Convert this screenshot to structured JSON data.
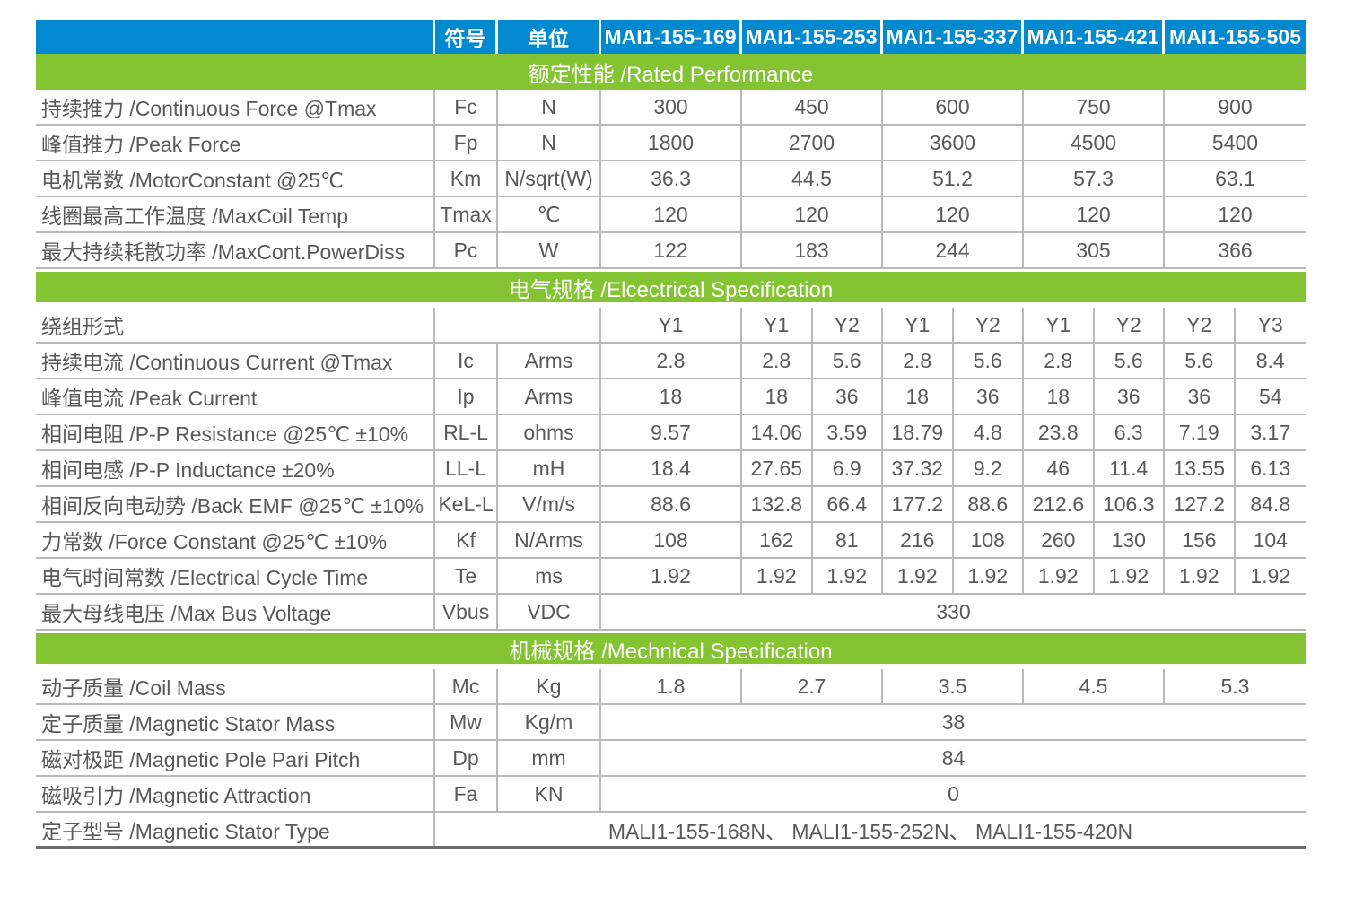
{
  "colors": {
    "header_blue": "#0289d0",
    "section_green": "#84c332",
    "border": "#b7b9bb",
    "text": "#58595b",
    "bottom_border": "#6b6c6e"
  },
  "table": {
    "header": {
      "param": "",
      "symbol": "符号",
      "unit": "单位",
      "models": [
        "MAI1-155-169",
        "MAI1-155-253",
        "MAI1-155-337",
        "MAI1-155-421",
        "MAI1-155-505"
      ]
    },
    "sections": [
      {
        "title": "额定性能 /Rated Performance",
        "rows": [
          {
            "param": "持续推力 /Continuous Force @Tmax",
            "cells": [
              {
                "t": "Fc",
                "s": 1
              },
              {
                "t": "N",
                "s": 1
              },
              {
                "t": "300",
                "s": 2
              },
              {
                "t": "450",
                "s": 2
              },
              {
                "t": "600",
                "s": 2
              },
              {
                "t": "750",
                "s": 2
              },
              {
                "t": "900",
                "s": 2
              }
            ]
          },
          {
            "param": "峰值推力 /Peak Force",
            "cells": [
              {
                "t": "Fp",
                "s": 1
              },
              {
                "t": "N",
                "s": 1
              },
              {
                "t": "1800",
                "s": 2
              },
              {
                "t": "2700",
                "s": 2
              },
              {
                "t": "3600",
                "s": 2
              },
              {
                "t": "4500",
                "s": 2
              },
              {
                "t": "5400",
                "s": 2
              }
            ]
          },
          {
            "param": "电机常数 /MotorConstant @25℃",
            "cells": [
              {
                "t": "Km",
                "s": 1
              },
              {
                "t": "N/sqrt(W)",
                "s": 1
              },
              {
                "t": "36.3",
                "s": 2
              },
              {
                "t": "44.5",
                "s": 2
              },
              {
                "t": "51.2",
                "s": 2
              },
              {
                "t": "57.3",
                "s": 2
              },
              {
                "t": "63.1",
                "s": 2
              }
            ]
          },
          {
            "param": "线圈最高工作温度 /MaxCoil Temp",
            "cells": [
              {
                "t": "Tmax",
                "s": 1
              },
              {
                "t": "℃",
                "s": 1
              },
              {
                "t": "120",
                "s": 2
              },
              {
                "t": "120",
                "s": 2
              },
              {
                "t": "120",
                "s": 2
              },
              {
                "t": "120",
                "s": 2
              },
              {
                "t": "120",
                "s": 2
              }
            ]
          },
          {
            "param": "最大持续耗散功率 /MaxCont.PowerDiss",
            "cells": [
              {
                "t": "Pc",
                "s": 1
              },
              {
                "t": "W",
                "s": 1
              },
              {
                "t": "122",
                "s": 2
              },
              {
                "t": "183",
                "s": 2
              },
              {
                "t": "244",
                "s": 2
              },
              {
                "t": "305",
                "s": 2
              },
              {
                "t": "366",
                "s": 2
              }
            ]
          }
        ]
      },
      {
        "title": "电气规格 /Elcectrical Specification",
        "rows": [
          {
            "param": "绕组形式",
            "cells": [
              {
                "t": "",
                "s": 2
              },
              {
                "t": "Y1",
                "s": 2
              },
              {
                "t": "Y1",
                "s": 1
              },
              {
                "t": "Y2",
                "s": 1
              },
              {
                "t": "Y1",
                "s": 1
              },
              {
                "t": "Y2",
                "s": 1
              },
              {
                "t": "Y1",
                "s": 1
              },
              {
                "t": "Y2",
                "s": 1
              },
              {
                "t": "Y2",
                "s": 1
              },
              {
                "t": "Y3",
                "s": 1
              }
            ]
          },
          {
            "param": "持续电流 /Continuous Current @Tmax",
            "cells": [
              {
                "t": "Ic",
                "s": 1
              },
              {
                "t": "Arms",
                "s": 1
              },
              {
                "t": "2.8",
                "s": 2
              },
              {
                "t": "2.8",
                "s": 1
              },
              {
                "t": "5.6",
                "s": 1
              },
              {
                "t": "2.8",
                "s": 1
              },
              {
                "t": "5.6",
                "s": 1
              },
              {
                "t": "2.8",
                "s": 1
              },
              {
                "t": "5.6",
                "s": 1
              },
              {
                "t": "5.6",
                "s": 1
              },
              {
                "t": "8.4",
                "s": 1
              }
            ]
          },
          {
            "param": "峰值电流 /Peak Current",
            "cells": [
              {
                "t": "Ip",
                "s": 1
              },
              {
                "t": "Arms",
                "s": 1
              },
              {
                "t": "18",
                "s": 2
              },
              {
                "t": "18",
                "s": 1
              },
              {
                "t": "36",
                "s": 1
              },
              {
                "t": "18",
                "s": 1
              },
              {
                "t": "36",
                "s": 1
              },
              {
                "t": "18",
                "s": 1
              },
              {
                "t": "36",
                "s": 1
              },
              {
                "t": "36",
                "s": 1
              },
              {
                "t": "54",
                "s": 1
              }
            ]
          },
          {
            "param": "相间电阻 /P-P Resistance @25℃ ±10%",
            "cells": [
              {
                "t": "RL-L",
                "s": 1
              },
              {
                "t": "ohms",
                "s": 1
              },
              {
                "t": "9.57",
                "s": 2
              },
              {
                "t": "14.06",
                "s": 1
              },
              {
                "t": "3.59",
                "s": 1
              },
              {
                "t": "18.79",
                "s": 1
              },
              {
                "t": "4.8",
                "s": 1
              },
              {
                "t": "23.8",
                "s": 1
              },
              {
                "t": "6.3",
                "s": 1
              },
              {
                "t": "7.19",
                "s": 1
              },
              {
                "t": "3.17",
                "s": 1
              }
            ]
          },
          {
            "param": "相间电感 /P-P Inductance ±20%",
            "cells": [
              {
                "t": "LL-L",
                "s": 1
              },
              {
                "t": "mH",
                "s": 1
              },
              {
                "t": "18.4",
                "s": 2
              },
              {
                "t": "27.65",
                "s": 1
              },
              {
                "t": "6.9",
                "s": 1
              },
              {
                "t": "37.32",
                "s": 1
              },
              {
                "t": "9.2",
                "s": 1
              },
              {
                "t": "46",
                "s": 1
              },
              {
                "t": "11.4",
                "s": 1
              },
              {
                "t": "13.55",
                "s": 1
              },
              {
                "t": "6.13",
                "s": 1
              }
            ]
          },
          {
            "param": "相间反向电动势 /Back EMF @25℃ ±10%",
            "cells": [
              {
                "t": "KeL-L",
                "s": 1
              },
              {
                "t": "V/m/s",
                "s": 1
              },
              {
                "t": "88.6",
                "s": 2
              },
              {
                "t": "132.8",
                "s": 1
              },
              {
                "t": "66.4",
                "s": 1
              },
              {
                "t": "177.2",
                "s": 1
              },
              {
                "t": "88.6",
                "s": 1
              },
              {
                "t": "212.6",
                "s": 1
              },
              {
                "t": "106.3",
                "s": 1
              },
              {
                "t": "127.2",
                "s": 1
              },
              {
                "t": "84.8",
                "s": 1
              }
            ]
          },
          {
            "param": "力常数 /Force Constant @25℃ ±10%",
            "cells": [
              {
                "t": "Kf",
                "s": 1
              },
              {
                "t": "N/Arms",
                "s": 1
              },
              {
                "t": "108",
                "s": 2
              },
              {
                "t": "162",
                "s": 1
              },
              {
                "t": "81",
                "s": 1
              },
              {
                "t": "216",
                "s": 1
              },
              {
                "t": "108",
                "s": 1
              },
              {
                "t": "260",
                "s": 1
              },
              {
                "t": "130",
                "s": 1
              },
              {
                "t": "156",
                "s": 1
              },
              {
                "t": "104",
                "s": 1
              }
            ]
          },
          {
            "param": "电气时间常数 /Electrical Cycle Time",
            "cells": [
              {
                "t": "Te",
                "s": 1
              },
              {
                "t": "ms",
                "s": 1
              },
              {
                "t": "1.92",
                "s": 2
              },
              {
                "t": "1.92",
                "s": 1
              },
              {
                "t": "1.92",
                "s": 1
              },
              {
                "t": "1.92",
                "s": 1
              },
              {
                "t": "1.92",
                "s": 1
              },
              {
                "t": "1.92",
                "s": 1
              },
              {
                "t": "1.92",
                "s": 1
              },
              {
                "t": "1.92",
                "s": 1
              },
              {
                "t": "1.92",
                "s": 1
              }
            ]
          },
          {
            "param": "最大母线电压 /Max Bus Voltage",
            "cells": [
              {
                "t": "Vbus",
                "s": 1
              },
              {
                "t": "VDC",
                "s": 1
              },
              {
                "t": "330",
                "s": 10
              }
            ]
          }
        ]
      },
      {
        "title": "机械规格 /Mechnical Specification",
        "rows": [
          {
            "param": "动子质量 /Coil Mass",
            "cells": [
              {
                "t": "Mc",
                "s": 1
              },
              {
                "t": "Kg",
                "s": 1
              },
              {
                "t": "1.8",
                "s": 2
              },
              {
                "t": "2.7",
                "s": 2
              },
              {
                "t": "3.5",
                "s": 2
              },
              {
                "t": "4.5",
                "s": 2
              },
              {
                "t": "5.3",
                "s": 2
              }
            ]
          },
          {
            "param": "定子质量 /Magnetic Stator Mass",
            "cells": [
              {
                "t": "Mw",
                "s": 1
              },
              {
                "t": "Kg/m",
                "s": 1
              },
              {
                "t": "38",
                "s": 10
              }
            ]
          },
          {
            "param": "磁对极距 /Magnetic Pole Pari Pitch",
            "cells": [
              {
                "t": "Dp",
                "s": 1
              },
              {
                "t": "mm",
                "s": 1
              },
              {
                "t": "84",
                "s": 10
              }
            ]
          },
          {
            "param": "磁吸引力 /Magnetic Attraction",
            "cells": [
              {
                "t": "Fa",
                "s": 1
              },
              {
                "t": "KN",
                "s": 1
              },
              {
                "t": "0",
                "s": 10
              }
            ]
          },
          {
            "param": "定子型号 /Magnetic Stator Type",
            "cells": [
              {
                "t": "MALI1-155-168N、 MALI1-155-252N、 MALI1-155-420N",
                "s": 12
              }
            ]
          }
        ]
      }
    ]
  }
}
